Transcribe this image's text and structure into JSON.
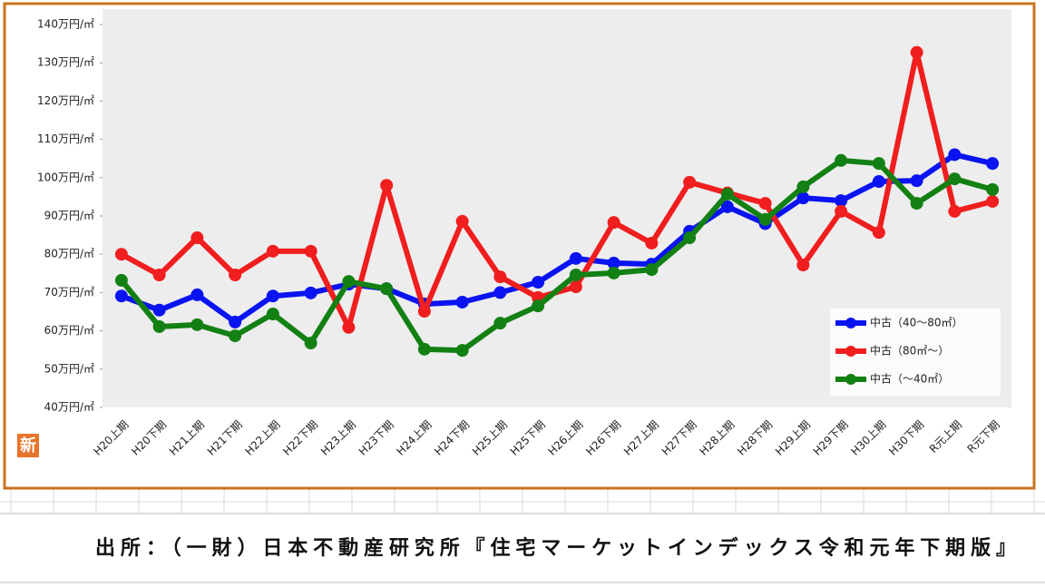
{
  "chart_data": {
    "type": "line",
    "categories": [
      "H20上期",
      "H20下期",
      "H21上期",
      "H21下期",
      "H22上期",
      "H22下期",
      "H23上期",
      "H23下期",
      "H24上期",
      "H24下期",
      "H25上期",
      "H25下期",
      "H26上期",
      "H26下期",
      "H27上期",
      "H27下期",
      "H28上期",
      "H28下期",
      "H29上期",
      "H29下期",
      "H30上期",
      "H30下期",
      "R元上期",
      "R元下期"
    ],
    "series": [
      {
        "name": "中古（40～80㎡）",
        "color": "#0a14f0",
        "values": [
          69.1,
          65.4,
          69.4,
          62.3,
          69.1,
          69.9,
          72.2,
          71.0,
          67.0,
          67.5,
          70.0,
          72.7,
          78.9,
          77.7,
          77.4,
          86.0,
          92.4,
          88.0,
          94.7,
          94.0,
          99.0,
          99.2,
          106.0,
          103.7
        ]
      },
      {
        "name": "中古（80㎡～）",
        "color": "#f01e1e",
        "values": [
          80.0,
          74.6,
          84.3,
          74.6,
          80.8,
          80.8,
          60.9,
          98.0,
          65.1,
          88.6,
          74.1,
          68.7,
          71.5,
          88.3,
          82.9,
          98.8,
          96.0,
          93.3,
          77.2,
          91.2,
          85.7,
          132.7,
          91.2,
          93.8
        ]
      },
      {
        "name": "中古（～40㎡）",
        "color": "#138013",
        "values": [
          73.2,
          61.1,
          61.6,
          58.7,
          64.4,
          56.8,
          72.9,
          71.0,
          55.2,
          54.9,
          62.0,
          66.5,
          74.6,
          75.1,
          76.0,
          84.3,
          95.7,
          89.1,
          97.6,
          104.5,
          103.7,
          93.3,
          99.7,
          96.9
        ]
      }
    ],
    "ylim": [
      40,
      140
    ],
    "yticks": [
      {
        "value": 40,
        "label": "40万円/㎡"
      },
      {
        "value": 50,
        "label": "50万円/㎡"
      },
      {
        "value": 60,
        "label": "60万円/㎡"
      },
      {
        "value": 70,
        "label": "70万円/㎡"
      },
      {
        "value": 80,
        "label": "80万円/㎡"
      },
      {
        "value": 90,
        "label": "90万円/㎡"
      },
      {
        "value": 100,
        "label": "100万円/㎡"
      },
      {
        "value": 110,
        "label": "110万円/㎡"
      },
      {
        "value": 120,
        "label": "120万円/㎡"
      },
      {
        "value": 130,
        "label": "130万円/㎡"
      },
      {
        "value": 140,
        "label": "140万円/㎡"
      }
    ],
    "legend": "lower right"
  },
  "logo": "新",
  "source": "出所：（一財）日本不動産研究所『住宅マーケットインデックス令和元年下期版』"
}
